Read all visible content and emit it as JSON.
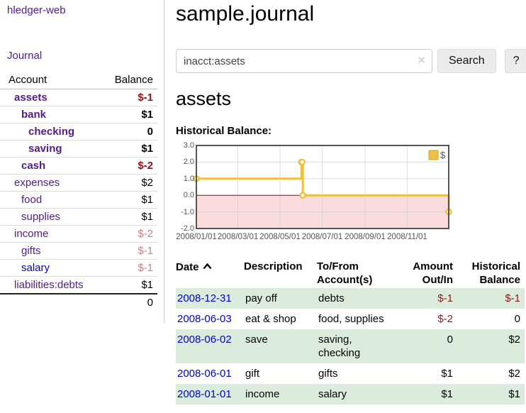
{
  "app": {
    "brand": "hledger-web",
    "nav_journal": "Journal"
  },
  "sidebar": {
    "accounts_table": {
      "col_account": "Account",
      "col_balance": "Balance",
      "rows": [
        {
          "name": "assets",
          "depth": 1,
          "bold": true,
          "balance": "$-1",
          "negative": true,
          "blue": false
        },
        {
          "name": "bank",
          "depth": 2,
          "bold": true,
          "balance": "$1",
          "negative": false,
          "blue": false
        },
        {
          "name": "checking",
          "depth": 3,
          "bold": true,
          "balance": "0",
          "negative": false,
          "blue": false
        },
        {
          "name": "saving",
          "depth": 3,
          "bold": true,
          "balance": "$1",
          "negative": false,
          "blue": false
        },
        {
          "name": "cash",
          "depth": 2,
          "bold": true,
          "balance": "$-2",
          "negative": true,
          "blue": false
        },
        {
          "name": "expenses",
          "depth": 1,
          "bold": false,
          "balance": "$2",
          "negative": false,
          "blue": false
        },
        {
          "name": "food",
          "depth": 2,
          "bold": false,
          "balance": "$1",
          "negative": false,
          "blue": false
        },
        {
          "name": "supplies",
          "depth": 2,
          "bold": false,
          "balance": "$1",
          "negative": false,
          "blue": false
        },
        {
          "name": "income",
          "depth": 1,
          "bold": false,
          "balance": "$-2",
          "negative": true,
          "blue": false
        },
        {
          "name": "gifts",
          "depth": 2,
          "bold": false,
          "balance": "$-1",
          "negative": true,
          "blue": false
        },
        {
          "name": "salary",
          "depth": 2,
          "bold": false,
          "balance": "$-1",
          "negative": true,
          "blue": true
        },
        {
          "name": "liabilities:debts",
          "depth": 1,
          "bold": false,
          "balance": "$1",
          "negative": false,
          "blue": false
        }
      ],
      "total": "0"
    }
  },
  "header": {
    "title": "sample.journal"
  },
  "search": {
    "value": "inacct:assets",
    "clear_icon": "✕",
    "button": "Search",
    "help_button": "?"
  },
  "account_page": {
    "heading": "assets",
    "chart_label": "Historical Balance:"
  },
  "chart_data": {
    "type": "line",
    "step": true,
    "title": "Historical Balance:",
    "legend_position": "top-right",
    "legend": [
      {
        "label": "$",
        "color": "#edc240"
      }
    ],
    "x_start": "2008-01-01",
    "x_end": "2008-12-31",
    "x_ticks": [
      "2008/01/01",
      "2008/03/01",
      "2008/05/01",
      "2008/07/01",
      "2008/09/01",
      "2008/11/01"
    ],
    "y_ticks": [
      3.0,
      2.0,
      1.0,
      0.0,
      -1.0,
      -2.0
    ],
    "ylim": [
      -2,
      3
    ],
    "series": [
      {
        "name": "$",
        "color": "#edc240",
        "data": [
          [
            "2008-01-01",
            1
          ],
          [
            "2008-06-01",
            2
          ],
          [
            "2008-06-02",
            2
          ],
          [
            "2008-06-03",
            0
          ],
          [
            "2008-12-31",
            -1
          ]
        ]
      }
    ],
    "negative_region_color": "#fbdcdc",
    "zero_line_color": "#a40000",
    "grid_color": "#cccccc",
    "border_color": "#545454",
    "tick_label_color": "#545454"
  },
  "register": {
    "columns": {
      "date": "Date",
      "description": "Description",
      "accounts": "To/From Account(s)",
      "amount": "Amount Out/In",
      "balance": "Historical Balance"
    },
    "sort": {
      "column": "date",
      "direction": "asc"
    },
    "rows": [
      {
        "date": "2008-12-31",
        "description": "pay off",
        "accounts": "debts",
        "amount": "$-1",
        "amount_negative": true,
        "balance": "$-1",
        "balance_negative": true
      },
      {
        "date": "2008-06-03",
        "description": "eat & shop",
        "accounts": "food, supplies",
        "amount": "$-2",
        "amount_negative": true,
        "balance": "0",
        "balance_negative": false
      },
      {
        "date": "2008-06-02",
        "description": "save",
        "accounts": "saving, checking",
        "amount": "0",
        "amount_negative": false,
        "balance": "$2",
        "balance_negative": false
      },
      {
        "date": "2008-06-01",
        "description": "gift",
        "accounts": "gifts",
        "amount": "$1",
        "amount_negative": false,
        "balance": "$2",
        "balance_negative": false
      },
      {
        "date": "2008-01-01",
        "description": "income",
        "accounts": "salary",
        "amount": "$1",
        "amount_negative": false,
        "balance": "$1",
        "balance_negative": false
      }
    ]
  }
}
